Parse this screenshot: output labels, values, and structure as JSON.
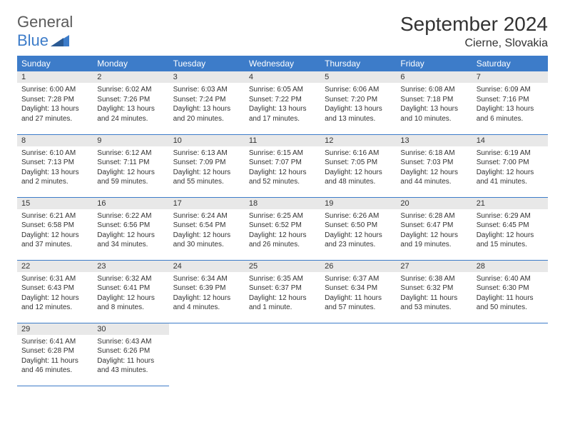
{
  "logo": {
    "word1": "General",
    "word2": "Blue"
  },
  "title": "September 2024",
  "location": "Cierne, Slovakia",
  "styling": {
    "header_bg": "#3d7cc9",
    "header_text": "#ffffff",
    "daynum_bg": "#e8e8e8",
    "border_color": "#3d7cc9",
    "body_text": "#333333",
    "title_fontsize": 28,
    "location_fontsize": 16,
    "th_fontsize": 12,
    "cell_fontsize": 10
  },
  "weekdays": [
    "Sunday",
    "Monday",
    "Tuesday",
    "Wednesday",
    "Thursday",
    "Friday",
    "Saturday"
  ],
  "weeks": [
    [
      {
        "n": "1",
        "sr": "6:00 AM",
        "ss": "7:28 PM",
        "dl": "13 hours and 27 minutes."
      },
      {
        "n": "2",
        "sr": "6:02 AM",
        "ss": "7:26 PM",
        "dl": "13 hours and 24 minutes."
      },
      {
        "n": "3",
        "sr": "6:03 AM",
        "ss": "7:24 PM",
        "dl": "13 hours and 20 minutes."
      },
      {
        "n": "4",
        "sr": "6:05 AM",
        "ss": "7:22 PM",
        "dl": "13 hours and 17 minutes."
      },
      {
        "n": "5",
        "sr": "6:06 AM",
        "ss": "7:20 PM",
        "dl": "13 hours and 13 minutes."
      },
      {
        "n": "6",
        "sr": "6:08 AM",
        "ss": "7:18 PM",
        "dl": "13 hours and 10 minutes."
      },
      {
        "n": "7",
        "sr": "6:09 AM",
        "ss": "7:16 PM",
        "dl": "13 hours and 6 minutes."
      }
    ],
    [
      {
        "n": "8",
        "sr": "6:10 AM",
        "ss": "7:13 PM",
        "dl": "13 hours and 2 minutes."
      },
      {
        "n": "9",
        "sr": "6:12 AM",
        "ss": "7:11 PM",
        "dl": "12 hours and 59 minutes."
      },
      {
        "n": "10",
        "sr": "6:13 AM",
        "ss": "7:09 PM",
        "dl": "12 hours and 55 minutes."
      },
      {
        "n": "11",
        "sr": "6:15 AM",
        "ss": "7:07 PM",
        "dl": "12 hours and 52 minutes."
      },
      {
        "n": "12",
        "sr": "6:16 AM",
        "ss": "7:05 PM",
        "dl": "12 hours and 48 minutes."
      },
      {
        "n": "13",
        "sr": "6:18 AM",
        "ss": "7:03 PM",
        "dl": "12 hours and 44 minutes."
      },
      {
        "n": "14",
        "sr": "6:19 AM",
        "ss": "7:00 PM",
        "dl": "12 hours and 41 minutes."
      }
    ],
    [
      {
        "n": "15",
        "sr": "6:21 AM",
        "ss": "6:58 PM",
        "dl": "12 hours and 37 minutes."
      },
      {
        "n": "16",
        "sr": "6:22 AM",
        "ss": "6:56 PM",
        "dl": "12 hours and 34 minutes."
      },
      {
        "n": "17",
        "sr": "6:24 AM",
        "ss": "6:54 PM",
        "dl": "12 hours and 30 minutes."
      },
      {
        "n": "18",
        "sr": "6:25 AM",
        "ss": "6:52 PM",
        "dl": "12 hours and 26 minutes."
      },
      {
        "n": "19",
        "sr": "6:26 AM",
        "ss": "6:50 PM",
        "dl": "12 hours and 23 minutes."
      },
      {
        "n": "20",
        "sr": "6:28 AM",
        "ss": "6:47 PM",
        "dl": "12 hours and 19 minutes."
      },
      {
        "n": "21",
        "sr": "6:29 AM",
        "ss": "6:45 PM",
        "dl": "12 hours and 15 minutes."
      }
    ],
    [
      {
        "n": "22",
        "sr": "6:31 AM",
        "ss": "6:43 PM",
        "dl": "12 hours and 12 minutes."
      },
      {
        "n": "23",
        "sr": "6:32 AM",
        "ss": "6:41 PM",
        "dl": "12 hours and 8 minutes."
      },
      {
        "n": "24",
        "sr": "6:34 AM",
        "ss": "6:39 PM",
        "dl": "12 hours and 4 minutes."
      },
      {
        "n": "25",
        "sr": "6:35 AM",
        "ss": "6:37 PM",
        "dl": "12 hours and 1 minute."
      },
      {
        "n": "26",
        "sr": "6:37 AM",
        "ss": "6:34 PM",
        "dl": "11 hours and 57 minutes."
      },
      {
        "n": "27",
        "sr": "6:38 AM",
        "ss": "6:32 PM",
        "dl": "11 hours and 53 minutes."
      },
      {
        "n": "28",
        "sr": "6:40 AM",
        "ss": "6:30 PM",
        "dl": "11 hours and 50 minutes."
      }
    ],
    [
      {
        "n": "29",
        "sr": "6:41 AM",
        "ss": "6:28 PM",
        "dl": "11 hours and 46 minutes."
      },
      {
        "n": "30",
        "sr": "6:43 AM",
        "ss": "6:26 PM",
        "dl": "11 hours and 43 minutes."
      },
      null,
      null,
      null,
      null,
      null
    ]
  ],
  "labels": {
    "sunrise": "Sunrise:",
    "sunset": "Sunset:",
    "daylight": "Daylight:"
  }
}
